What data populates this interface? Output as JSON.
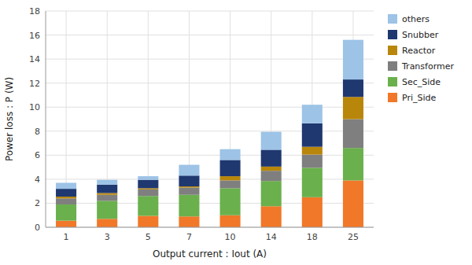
{
  "chart_data": {
    "type": "bar",
    "stacked": true,
    "xlabel": "Output current : Iout (A)",
    "ylabel": "Power loss : P (W)",
    "categories": [
      "1",
      "3",
      "5",
      "7",
      "10",
      "14",
      "18",
      "25"
    ],
    "series": [
      {
        "name": "Pri_Side",
        "color": "#f07828",
        "values": [
          0.55,
          0.7,
          0.95,
          0.9,
          1.0,
          1.75,
          2.5,
          3.9
        ]
      },
      {
        "name": "Sec_Side",
        "color": "#6ab04c",
        "values": [
          1.35,
          1.5,
          1.65,
          1.8,
          2.25,
          2.1,
          2.45,
          2.7
        ]
      },
      {
        "name": "Transformer",
        "color": "#7f7f7f",
        "values": [
          0.5,
          0.5,
          0.55,
          0.6,
          0.65,
          0.85,
          1.1,
          2.4
        ]
      },
      {
        "name": "Reactor",
        "color": "#b8860b",
        "values": [
          0.15,
          0.15,
          0.1,
          0.1,
          0.35,
          0.35,
          0.65,
          1.85
        ]
      },
      {
        "name": "Snubber",
        "color": "#1f3870",
        "values": [
          0.65,
          0.7,
          0.7,
          0.9,
          1.35,
          1.4,
          1.95,
          1.45
        ]
      },
      {
        "name": "others",
        "color": "#9dc3e6",
        "values": [
          0.5,
          0.4,
          0.3,
          0.9,
          0.9,
          1.5,
          1.55,
          3.3
        ]
      }
    ],
    "ylim": [
      0,
      18
    ],
    "yticks": [
      0,
      2,
      4,
      6,
      8,
      10,
      12,
      14,
      16,
      18
    ],
    "grid": true,
    "legend": "right"
  }
}
